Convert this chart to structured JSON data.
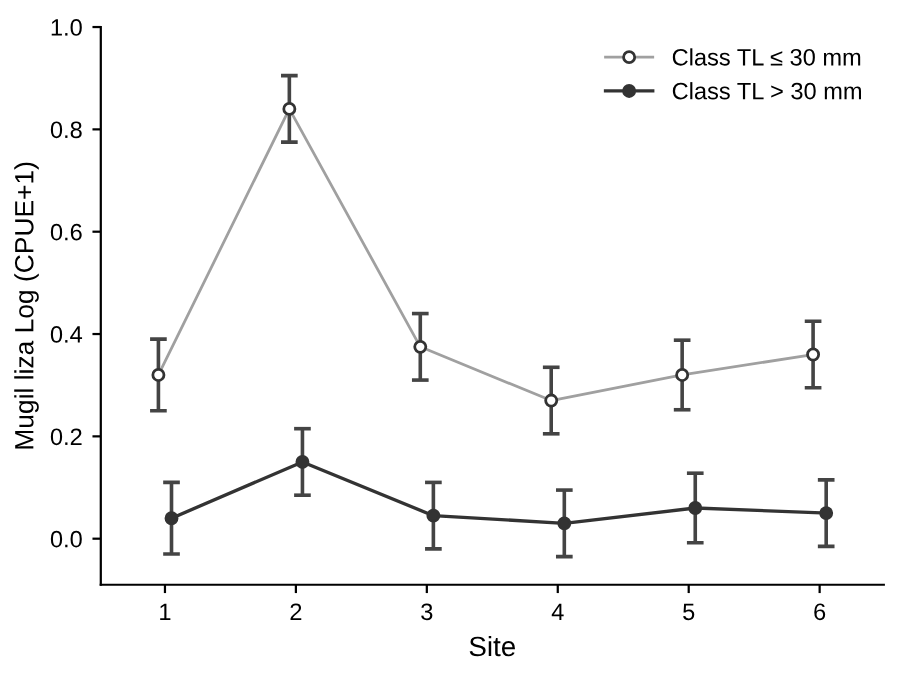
{
  "chart_data": {
    "type": "line",
    "xlabel": "Site",
    "ylabel": "Mugil liza Log (CPUE+1)",
    "xlim": [
      0.51,
      6.49
    ],
    "xticks": [
      1,
      2,
      3,
      4,
      5,
      6
    ],
    "ylim": [
      -0.09,
      1.0
    ],
    "yticks": [
      {
        "value": 0,
        "label": "0.0"
      },
      0.2,
      0.4,
      0.6,
      0.8,
      {
        "value": 1,
        "label": "1.0"
      }
    ],
    "series": [
      {
        "name": "Class TL ≤ 30 mm",
        "color": "#a0a0a0",
        "marker": "circle",
        "x": [
          0.95,
          1.95,
          2.95,
          3.95,
          4.95,
          5.95
        ],
        "values": [
          0.32,
          0.84,
          0.375,
          0.27,
          0.32,
          0.36
        ],
        "errors": [
          0.07,
          0.065,
          0.065,
          0.065,
          0.068,
          0.065
        ]
      },
      {
        "name": "Class TL > 30 mm",
        "color": "#333333",
        "marker": "circle",
        "x": [
          1.05,
          2.05,
          3.05,
          4.05,
          5.05,
          6.05
        ],
        "values": [
          0.04,
          0.15,
          0.045,
          0.03,
          0.06,
          0.05
        ],
        "errors": [
          0.07,
          0.065,
          0.065,
          0.065,
          0.068,
          0.065
        ]
      }
    ],
    "legend": "top right",
    "grid": false
  }
}
